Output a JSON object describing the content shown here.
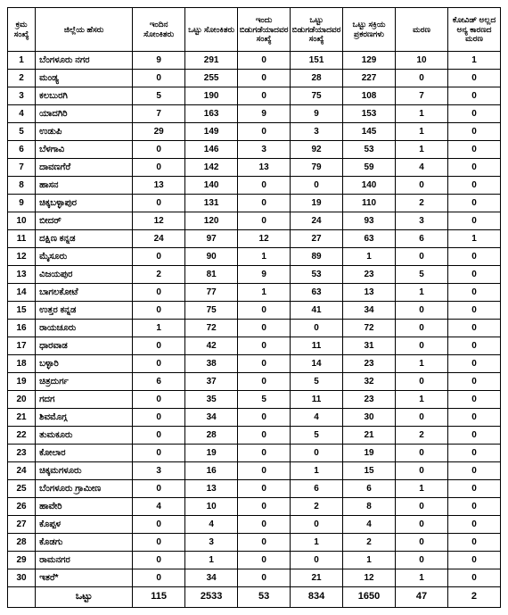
{
  "columns": [
    "ಕ್ರಮ ಸಂಖ್ಯೆ",
    "ಜಿಲ್ಲೆಯ ಹೆಸರು",
    "ಇಂದಿನ ಸೋಂಕಿತರು",
    "ಒಟ್ಟು ಸೋಂಕಿತರು",
    "ಇಂದು ಬಿಡುಗಡೆಯಾದವರ ಸಂಖ್ಯೆ",
    "ಒಟ್ಟು ಬಿಡುಗಡೆಯಾದವರ ಸಂಖ್ಯೆ",
    "ಒಟ್ಟು ಸಕ್ರಿಯ ಪ್ರಕರಣಗಳು",
    "ಮರಣ",
    "ಕೋವಿಡ್ ಅಲ್ಲದ ಅನ್ಯ ಕಾರಣದ ಮರಣ"
  ],
  "rows": [
    [
      "1",
      "ಬೆಂಗಳೂರು ನಗರ",
      "9",
      "291",
      "0",
      "151",
      "129",
      "10",
      "1"
    ],
    [
      "2",
      "ಮಂಡ್ಯ",
      "0",
      "255",
      "0",
      "28",
      "227",
      "0",
      "0"
    ],
    [
      "3",
      "ಕಲಬುರಗಿ",
      "5",
      "190",
      "0",
      "75",
      "108",
      "7",
      "0"
    ],
    [
      "4",
      "ಯಾದಗಿರಿ",
      "7",
      "163",
      "9",
      "9",
      "153",
      "1",
      "0"
    ],
    [
      "5",
      "ಉಡುಪಿ",
      "29",
      "149",
      "0",
      "3",
      "145",
      "1",
      "0"
    ],
    [
      "6",
      "ಬೆಳಗಾವಿ",
      "0",
      "146",
      "3",
      "92",
      "53",
      "1",
      "0"
    ],
    [
      "7",
      "ದಾವಣಗೆರೆ",
      "0",
      "142",
      "13",
      "79",
      "59",
      "4",
      "0"
    ],
    [
      "8",
      "ಹಾಸನ",
      "13",
      "140",
      "0",
      "0",
      "140",
      "0",
      "0"
    ],
    [
      "9",
      "ಚಿಕ್ಕಬಳ್ಳಾಪುರ",
      "0",
      "131",
      "0",
      "19",
      "110",
      "2",
      "0"
    ],
    [
      "10",
      "ಬೀದರ್",
      "12",
      "120",
      "0",
      "24",
      "93",
      "3",
      "0"
    ],
    [
      "11",
      "ದಕ್ಷಿಣ ಕನ್ನಡ",
      "24",
      "97",
      "12",
      "27",
      "63",
      "6",
      "1"
    ],
    [
      "12",
      "ಮೈಸೂರು",
      "0",
      "90",
      "1",
      "89",
      "1",
      "0",
      "0"
    ],
    [
      "13",
      "ವಿಜಯಪುರ",
      "2",
      "81",
      "9",
      "53",
      "23",
      "5",
      "0"
    ],
    [
      "14",
      "ಬಾಗಲಕೋಟೆ",
      "0",
      "77",
      "1",
      "63",
      "13",
      "1",
      "0"
    ],
    [
      "15",
      "ಉತ್ತರ ಕನ್ನಡ",
      "0",
      "75",
      "0",
      "41",
      "34",
      "0",
      "0"
    ],
    [
      "16",
      "ರಾಯಚೂರು",
      "1",
      "72",
      "0",
      "0",
      "72",
      "0",
      "0"
    ],
    [
      "17",
      "ಧಾರವಾಡ",
      "0",
      "42",
      "0",
      "11",
      "31",
      "0",
      "0"
    ],
    [
      "18",
      "ಬಳ್ಳಾರಿ",
      "0",
      "38",
      "0",
      "14",
      "23",
      "1",
      "0"
    ],
    [
      "19",
      "ಚಿತ್ರದುರ್ಗ",
      "6",
      "37",
      "0",
      "5",
      "32",
      "0",
      "0"
    ],
    [
      "20",
      "ಗದಗ",
      "0",
      "35",
      "5",
      "11",
      "23",
      "1",
      "0"
    ],
    [
      "21",
      "ಶಿವಮೊಗ್ಗ",
      "0",
      "34",
      "0",
      "4",
      "30",
      "0",
      "0"
    ],
    [
      "22",
      "ತುಮಕೂರು",
      "0",
      "28",
      "0",
      "5",
      "21",
      "2",
      "0"
    ],
    [
      "23",
      "ಕೋಲಾರ",
      "0",
      "19",
      "0",
      "0",
      "19",
      "0",
      "0"
    ],
    [
      "24",
      "ಚಿಕ್ಕಮಗಳೂರು",
      "3",
      "16",
      "0",
      "1",
      "15",
      "0",
      "0"
    ],
    [
      "25",
      "ಬೆಂಗಳೂರು ಗ್ರಾಮೀಣ",
      "0",
      "13",
      "0",
      "6",
      "6",
      "1",
      "0"
    ],
    [
      "26",
      "ಹಾವೇರಿ",
      "4",
      "10",
      "0",
      "2",
      "8",
      "0",
      "0"
    ],
    [
      "27",
      "ಕೊಪ್ಪಳ",
      "0",
      "4",
      "0",
      "0",
      "4",
      "0",
      "0"
    ],
    [
      "28",
      "ಕೊಡಗು",
      "0",
      "3",
      "0",
      "1",
      "2",
      "0",
      "0"
    ],
    [
      "29",
      "ರಾಮನಗರ",
      "0",
      "1",
      "0",
      "0",
      "1",
      "0",
      "0"
    ],
    [
      "30",
      "ಇತರೆ*",
      "0",
      "34",
      "0",
      "21",
      "12",
      "1",
      "0"
    ]
  ],
  "total": [
    "",
    "ಒಟ್ಟು",
    "115",
    "2533",
    "53",
    "834",
    "1650",
    "47",
    "2"
  ]
}
